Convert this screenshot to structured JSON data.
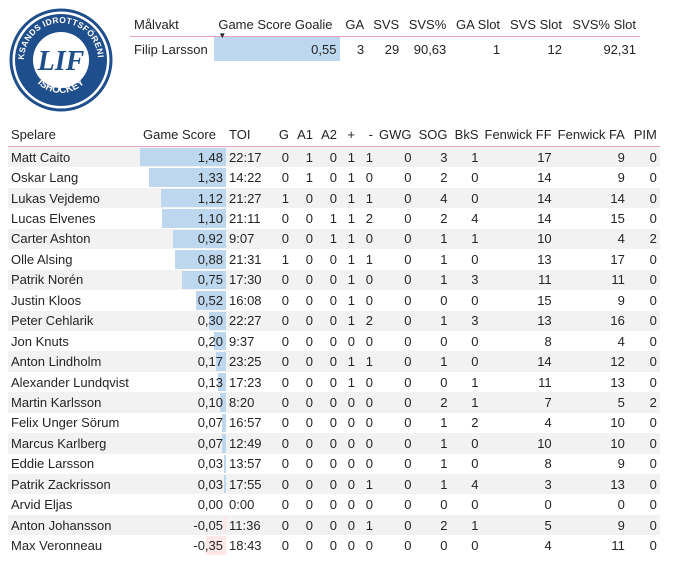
{
  "logo": {
    "top_text": "LEKSANDS IDROTTSFÖRENING",
    "bottom_text": "ISHOCKEY",
    "monogram": "LIF"
  },
  "goalie_table": {
    "headers": [
      "Målvakt",
      "Game Score Goalie",
      "GA",
      "SVS",
      "SVS%",
      "GA Slot",
      "SVS Slot",
      "SVS% Slot"
    ],
    "rows": [
      {
        "name": "Filip Larsson",
        "game_score": "0,55",
        "ga": "3",
        "svs": "29",
        "svs_pct": "90,63",
        "ga_slot": "1",
        "svs_slot": "12",
        "svs_pct_slot": "92,31"
      }
    ]
  },
  "player_table": {
    "headers": [
      "Spelare",
      "Game Score",
      "TOI",
      "G",
      "A1",
      "A2",
      "+",
      "-",
      "GWG",
      "SOG",
      "BkS",
      "Fenwick FF",
      "Fenwick FA",
      "PIM"
    ],
    "rows": [
      {
        "name": "Matt Caito",
        "gs": "1,48",
        "gs_v": 1.48,
        "toi": "22:17",
        "g": "0",
        "a1": "1",
        "a2": "0",
        "plus": "1",
        "minus": "1",
        "gwg": "0",
        "sog": "3",
        "bks": "1",
        "ff": "17",
        "fa": "9",
        "pim": "0"
      },
      {
        "name": "Oskar Lang",
        "gs": "1,33",
        "gs_v": 1.33,
        "toi": "14:22",
        "g": "0",
        "a1": "1",
        "a2": "0",
        "plus": "1",
        "minus": "0",
        "gwg": "0",
        "sog": "2",
        "bks": "0",
        "ff": "14",
        "fa": "9",
        "pim": "0"
      },
      {
        "name": "Lukas Vejdemo",
        "gs": "1,12",
        "gs_v": 1.12,
        "toi": "21:27",
        "g": "1",
        "a1": "0",
        "a2": "0",
        "plus": "1",
        "minus": "1",
        "gwg": "0",
        "sog": "4",
        "bks": "0",
        "ff": "14",
        "fa": "14",
        "pim": "0"
      },
      {
        "name": "Lucas Elvenes",
        "gs": "1,10",
        "gs_v": 1.1,
        "toi": "21:11",
        "g": "0",
        "a1": "0",
        "a2": "1",
        "plus": "1",
        "minus": "2",
        "gwg": "0",
        "sog": "2",
        "bks": "4",
        "ff": "14",
        "fa": "15",
        "pim": "0"
      },
      {
        "name": "Carter Ashton",
        "gs": "0,92",
        "gs_v": 0.92,
        "toi": "9:07",
        "g": "0",
        "a1": "0",
        "a2": "1",
        "plus": "1",
        "minus": "0",
        "gwg": "0",
        "sog": "1",
        "bks": "1",
        "ff": "10",
        "fa": "4",
        "pim": "2"
      },
      {
        "name": "Olle Alsing",
        "gs": "0,88",
        "gs_v": 0.88,
        "toi": "21:31",
        "g": "1",
        "a1": "0",
        "a2": "0",
        "plus": "1",
        "minus": "1",
        "gwg": "0",
        "sog": "1",
        "bks": "0",
        "ff": "13",
        "fa": "17",
        "pim": "0"
      },
      {
        "name": "Patrik Norén",
        "gs": "0,75",
        "gs_v": 0.75,
        "toi": "17:30",
        "g": "0",
        "a1": "0",
        "a2": "0",
        "plus": "1",
        "minus": "0",
        "gwg": "0",
        "sog": "1",
        "bks": "3",
        "ff": "11",
        "fa": "11",
        "pim": "0"
      },
      {
        "name": "Justin Kloos",
        "gs": "0,52",
        "gs_v": 0.52,
        "toi": "16:08",
        "g": "0",
        "a1": "0",
        "a2": "0",
        "plus": "1",
        "minus": "0",
        "gwg": "0",
        "sog": "0",
        "bks": "0",
        "ff": "15",
        "fa": "9",
        "pim": "0"
      },
      {
        "name": "Peter Cehlarik",
        "gs": "0,30",
        "gs_v": 0.3,
        "toi": "22:27",
        "g": "0",
        "a1": "0",
        "a2": "0",
        "plus": "1",
        "minus": "2",
        "gwg": "0",
        "sog": "1",
        "bks": "3",
        "ff": "13",
        "fa": "16",
        "pim": "0"
      },
      {
        "name": "Jon Knuts",
        "gs": "0,20",
        "gs_v": 0.2,
        "toi": "9:37",
        "g": "0",
        "a1": "0",
        "a2": "0",
        "plus": "0",
        "minus": "0",
        "gwg": "0",
        "sog": "0",
        "bks": "0",
        "ff": "8",
        "fa": "4",
        "pim": "0"
      },
      {
        "name": "Anton Lindholm",
        "gs": "0,17",
        "gs_v": 0.17,
        "toi": "23:25",
        "g": "0",
        "a1": "0",
        "a2": "0",
        "plus": "1",
        "minus": "1",
        "gwg": "0",
        "sog": "1",
        "bks": "0",
        "ff": "14",
        "fa": "12",
        "pim": "0"
      },
      {
        "name": "Alexander Lundqvist",
        "gs": "0,13",
        "gs_v": 0.13,
        "toi": "17:23",
        "g": "0",
        "a1": "0",
        "a2": "0",
        "plus": "1",
        "minus": "0",
        "gwg": "0",
        "sog": "0",
        "bks": "1",
        "ff": "11",
        "fa": "13",
        "pim": "0"
      },
      {
        "name": "Martin Karlsson",
        "gs": "0,10",
        "gs_v": 0.1,
        "toi": "8:20",
        "g": "0",
        "a1": "0",
        "a2": "0",
        "plus": "0",
        "minus": "0",
        "gwg": "0",
        "sog": "2",
        "bks": "1",
        "ff": "7",
        "fa": "5",
        "pim": "2"
      },
      {
        "name": "Felix Unger Sörum",
        "gs": "0,07",
        "gs_v": 0.07,
        "toi": "16:57",
        "g": "0",
        "a1": "0",
        "a2": "0",
        "plus": "0",
        "minus": "0",
        "gwg": "0",
        "sog": "1",
        "bks": "2",
        "ff": "4",
        "fa": "10",
        "pim": "0"
      },
      {
        "name": "Marcus Karlberg",
        "gs": "0,07",
        "gs_v": 0.07,
        "toi": "12:49",
        "g": "0",
        "a1": "0",
        "a2": "0",
        "plus": "0",
        "minus": "0",
        "gwg": "0",
        "sog": "1",
        "bks": "0",
        "ff": "10",
        "fa": "10",
        "pim": "0"
      },
      {
        "name": "Eddie Larsson",
        "gs": "0,03",
        "gs_v": 0.03,
        "toi": "13:57",
        "g": "0",
        "a1": "0",
        "a2": "0",
        "plus": "0",
        "minus": "0",
        "gwg": "0",
        "sog": "1",
        "bks": "0",
        "ff": "8",
        "fa": "9",
        "pim": "0"
      },
      {
        "name": "Patrik Zackrisson",
        "gs": "0,03",
        "gs_v": 0.03,
        "toi": "17:55",
        "g": "0",
        "a1": "0",
        "a2": "0",
        "plus": "0",
        "minus": "1",
        "gwg": "0",
        "sog": "1",
        "bks": "4",
        "ff": "3",
        "fa": "13",
        "pim": "0"
      },
      {
        "name": "Arvid Eljas",
        "gs": "0,00",
        "gs_v": 0.0,
        "toi": "0:00",
        "g": "0",
        "a1": "0",
        "a2": "0",
        "plus": "0",
        "minus": "0",
        "gwg": "0",
        "sog": "0",
        "bks": "0",
        "ff": "0",
        "fa": "0",
        "pim": "0"
      },
      {
        "name": "Anton Johansson",
        "gs": "-0,05",
        "gs_v": -0.05,
        "toi": "11:36",
        "g": "0",
        "a1": "0",
        "a2": "0",
        "plus": "0",
        "minus": "1",
        "gwg": "0",
        "sog": "2",
        "bks": "1",
        "ff": "5",
        "fa": "9",
        "pim": "0"
      },
      {
        "name": "Max Veronneau",
        "gs": "-0,35",
        "gs_v": -0.35,
        "toi": "18:43",
        "g": "0",
        "a1": "0",
        "a2": "0",
        "plus": "0",
        "minus": "0",
        "gwg": "0",
        "sog": "0",
        "bks": "0",
        "ff": "4",
        "fa": "11",
        "pim": "0"
      }
    ]
  },
  "colors": {
    "positive_bar": "#bdd7ee",
    "negative_bar": "#fde7e7",
    "header_rule": "#e6a0c4",
    "stripe": "#f2f2f2",
    "logo_blue": "#1f4e8c"
  }
}
